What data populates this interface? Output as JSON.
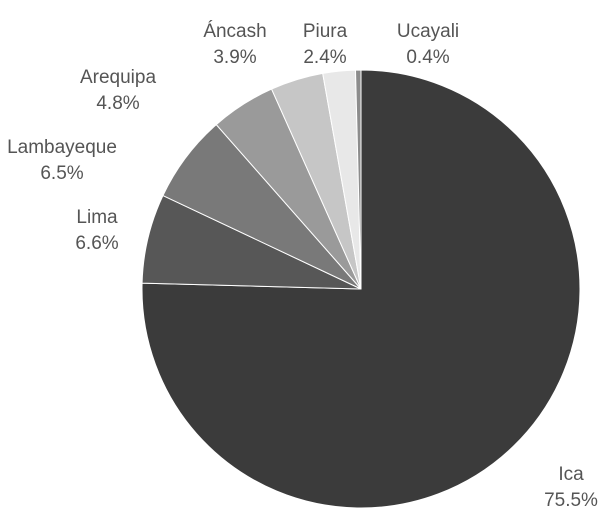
{
  "chart_data": {
    "type": "pie",
    "categories": [
      "Ica",
      "Lima",
      "Lambayeque",
      "Arequipa",
      "Áncash",
      "Piura",
      "Ucayali"
    ],
    "values": [
      75.5,
      6.6,
      6.5,
      4.8,
      3.9,
      2.4,
      0.4
    ],
    "value_labels": [
      "75.5%",
      "6.6%",
      "6.5%",
      "4.8%",
      "3.9%",
      "2.4%",
      "0.4%"
    ],
    "colors": [
      "#3b3b3b",
      "#575757",
      "#797979",
      "#9a9a9a",
      "#c6c6c6",
      "#e8e8e8",
      "#8c8c8c"
    ]
  }
}
